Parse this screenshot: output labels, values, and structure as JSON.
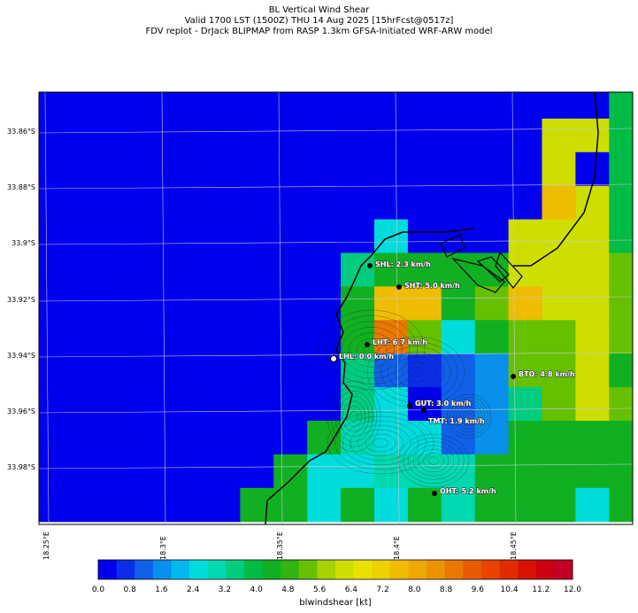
{
  "title": {
    "line1": "BL Vertical Wind Shear",
    "line2": "Valid 1700 LST (1500Z) THU 14 Aug 2025 [15hrFcst@0517z]",
    "line3": "FDV replot - DrJack BLIPMAP from RASP 1.3km GFSA-Initiated WRF-ARW model"
  },
  "lat_labels": [
    "33.86°S",
    "33.88°S",
    "33.9°S",
    "33.92°S",
    "33.94°S",
    "33.96°S",
    "33.98°S"
  ],
  "lon_labels": [
    "18.25°E",
    "18.3°E",
    "18.35°E",
    "18.4°E",
    "18.45°E"
  ],
  "stations": [
    {
      "code": "SHL",
      "label": "SHL: 2.3 km/h",
      "value_kmh": 2.3
    },
    {
      "code": "SHT",
      "label": "SHT: 5.0 km/h",
      "value_kmh": 5.0
    },
    {
      "code": "LHT",
      "label": "LHT: 6.7 km/h",
      "value_kmh": 6.7
    },
    {
      "code": "LHL",
      "label": "LHL: 0.0 km/h",
      "value_kmh": 0.0
    },
    {
      "code": "BTO",
      "label": "BTO: 4.8 km/h",
      "value_kmh": 4.8
    },
    {
      "code": "GUT",
      "label": "GUT: 3.0 km/h",
      "value_kmh": 3.0
    },
    {
      "code": "TMT",
      "label": "TMT: 1.9 km/h",
      "value_kmh": 1.9
    },
    {
      "code": "OHT",
      "label": "OHT: 5.2 km/h",
      "value_kmh": 5.2
    }
  ],
  "colorbar": {
    "label": "blwindshear [kt]",
    "min": 0.0,
    "max": 12.0,
    "ticks": [
      "0.0",
      "0.8",
      "1.6",
      "2.4",
      "3.2",
      "4.0",
      "4.8",
      "5.6",
      "6.4",
      "7.2",
      "8.0",
      "8.8",
      "9.6",
      "10.4",
      "11.2",
      "12.0"
    ],
    "colors": [
      "#0000ee",
      "#0a2ee8",
      "#1060e8",
      "#0890ea",
      "#00b8ec",
      "#00dcdc",
      "#00d8b0",
      "#00cc80",
      "#00bb44",
      "#11b022",
      "#33b411",
      "#66c000",
      "#a8d200",
      "#cede00",
      "#e8e000",
      "#ecd000",
      "#eebc00",
      "#eca800",
      "#ea9200",
      "#e87800",
      "#e85c00",
      "#e84400",
      "#e02c00",
      "#d81400",
      "#cc0010",
      "#c00024"
    ]
  },
  "grid_values_kt": [
    [
      0.0,
      0.0,
      0.0,
      0.0,
      0.0,
      0.0,
      0.0,
      0.0,
      0.0,
      0.0,
      0.0,
      0.0,
      0.0,
      0.0,
      0.0,
      0.0,
      0.0,
      3.8
    ],
    [
      0.0,
      0.0,
      0.0,
      0.0,
      0.0,
      0.0,
      0.0,
      0.0,
      0.0,
      0.0,
      0.0,
      0.0,
      0.0,
      0.0,
      0.0,
      6.3,
      6.3,
      3.8
    ],
    [
      0.0,
      0.0,
      0.0,
      0.0,
      0.0,
      0.0,
      0.0,
      0.0,
      0.0,
      0.0,
      0.0,
      0.0,
      0.0,
      0.0,
      0.0,
      6.3,
      0.0,
      3.8
    ],
    [
      0.0,
      0.0,
      0.0,
      0.0,
      0.0,
      0.0,
      0.0,
      0.0,
      0.0,
      0.0,
      0.0,
      0.0,
      0.0,
      0.0,
      0.0,
      7.8,
      6.3,
      3.8
    ],
    [
      0.0,
      0.0,
      0.0,
      0.0,
      0.0,
      0.0,
      0.0,
      0.0,
      0.0,
      0.0,
      2.5,
      0.3,
      0.0,
      0.0,
      6.3,
      6.3,
      6.3,
      3.8
    ],
    [
      0.0,
      0.0,
      0.0,
      0.0,
      0.0,
      0.0,
      0.0,
      0.0,
      0.0,
      3.5,
      4.5,
      4.5,
      4.5,
      4.5,
      6.3,
      6.3,
      6.3,
      5.3
    ],
    [
      0.0,
      0.0,
      0.0,
      0.0,
      0.0,
      0.0,
      0.0,
      0.0,
      0.0,
      4.5,
      7.8,
      7.8,
      4.5,
      5.3,
      7.8,
      6.3,
      6.3,
      5.3
    ],
    [
      0.0,
      0.0,
      0.0,
      0.0,
      0.0,
      0.0,
      0.0,
      0.0,
      0.0,
      4.5,
      8.8,
      5.3,
      2.5,
      4.5,
      5.3,
      5.3,
      6.3,
      5.3
    ],
    [
      0.0,
      0.0,
      0.0,
      0.0,
      0.0,
      0.0,
      0.0,
      0.0,
      0.0,
      3.5,
      1.0,
      0.8,
      1.0,
      1.8,
      5.3,
      5.3,
      6.3,
      4.5
    ],
    [
      0.0,
      0.0,
      0.0,
      0.0,
      0.0,
      0.0,
      0.0,
      0.0,
      0.0,
      3.5,
      2.5,
      0.3,
      1.0,
      1.8,
      3.5,
      5.3,
      6.3,
      5.3
    ],
    [
      0.0,
      0.0,
      0.0,
      0.0,
      0.0,
      0.0,
      0.0,
      0.0,
      4.5,
      3.0,
      2.5,
      2.5,
      1.0,
      1.8,
      4.5,
      4.5,
      4.5,
      4.5
    ],
    [
      0.0,
      0.0,
      0.0,
      0.0,
      0.0,
      0.0,
      0.0,
      4.5,
      2.5,
      2.5,
      3.0,
      3.0,
      3.0,
      4.5,
      4.5,
      4.5,
      4.5,
      4.5
    ],
    [
      0.0,
      0.0,
      0.0,
      0.0,
      0.0,
      0.0,
      4.5,
      4.5,
      2.5,
      4.5,
      2.5,
      4.5,
      3.0,
      4.5,
      4.5,
      4.5,
      2.5,
      4.5
    ]
  ]
}
